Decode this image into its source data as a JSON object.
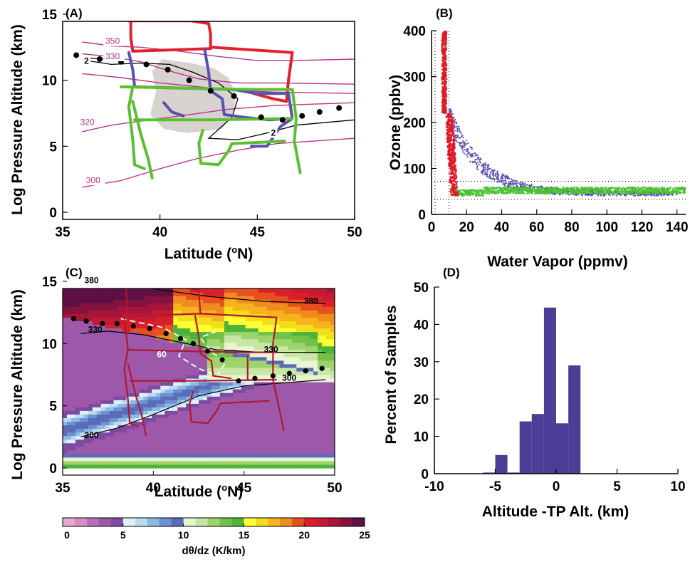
{
  "chart_data": [
    {
      "panel": "(A)",
      "type": "line",
      "xlabel": "Latitude (",
      "xlabel_sup": "o",
      "xlabel_end": "N)",
      "ylabel": "Log Pressure Altitude (km)",
      "xlim": [
        35,
        50
      ],
      "ylim": [
        0,
        15
      ],
      "xticks": [
        "35",
        "40",
        "45",
        "50"
      ],
      "yticks": [
        "0",
        "5",
        "10",
        "15"
      ],
      "colors": {
        "red": "#e4202c",
        "blue": "#5a50b0",
        "green": "#5cbf2f",
        "theta": "#b8348a",
        "shade": "#d9d3cf"
      },
      "theta_labels": [
        "350",
        "330",
        "320",
        "300"
      ],
      "pv_labels": [
        "2",
        "2"
      ],
      "tropopause_points": [
        [
          35.7,
          11.9
        ],
        [
          36.9,
          11.6
        ],
        [
          38.0,
          11.4
        ],
        [
          39.3,
          11.2
        ],
        [
          40.4,
          10.8
        ],
        [
          41.5,
          10.0
        ],
        [
          42.6,
          9.2
        ],
        [
          43.8,
          8.8
        ],
        [
          45.2,
          7.2
        ],
        [
          46.3,
          7.0
        ],
        [
          47.3,
          7.3
        ],
        [
          48.2,
          7.6
        ],
        [
          49.2,
          7.9
        ]
      ]
    },
    {
      "panel": "(B)",
      "type": "scatter",
      "xlabel": "Water Vapor (ppmv)",
      "ylabel": "Ozone (ppbv)",
      "xlim": [
        0,
        145
      ],
      "ylim": [
        0,
        400
      ],
      "xticks": [
        "0",
        "20",
        "40",
        "60",
        "80",
        "100",
        "120",
        "140"
      ],
      "yticks": [
        "0",
        "100",
        "200",
        "300",
        "400"
      ]
    },
    {
      "panel": "(C)",
      "type": "heatmap",
      "xlabel": "Latitude (",
      "xlabel_sup": "o",
      "xlabel_end": "N)",
      "ylabel": "Log Pressure Altitude (km)",
      "xlim": [
        35,
        50
      ],
      "ylim": [
        0,
        15
      ],
      "xticks": [
        "35",
        "40",
        "45",
        "50"
      ],
      "yticks": [
        "0",
        "5",
        "10",
        "15"
      ],
      "contour_labels": [
        "380",
        "380",
        "330",
        "330",
        "300",
        "300",
        "60"
      ],
      "colorbar": {
        "label": "dθ/dz (K/km)",
        "ticks": [
          "0",
          "5",
          "10",
          "15",
          "20",
          "25"
        ],
        "colors": [
          "#e7a8cf",
          "#d98cc3",
          "#b96db3",
          "#9d58aa",
          "#7d4aa1",
          "#dff0fa",
          "#b8dcf1",
          "#8fb9e0",
          "#6d92cf",
          "#5a6cb9",
          "#e9f4d3",
          "#c9e6a5",
          "#9fd36d",
          "#72c24a",
          "#4db33a",
          "#ffff33",
          "#f2df1a",
          "#f7b21e",
          "#f08c1e",
          "#e6501e",
          "#d9202a",
          "#c51a32",
          "#a6153a",
          "#84133f",
          "#5e0f44"
        ]
      }
    },
    {
      "panel": "(D)",
      "type": "bar",
      "xlabel": "Altitude -TP Alt. (km)",
      "ylabel": "Percent of Samples",
      "xlim": [
        -10,
        10
      ],
      "ylim": [
        0,
        50
      ],
      "xticks": [
        "-10",
        "-5",
        "0",
        "5",
        "10"
      ],
      "yticks": [
        "0",
        "10",
        "20",
        "30",
        "40",
        "50"
      ],
      "bin_width": 1,
      "bin_starts": [
        -6,
        -5,
        -4,
        -3,
        -2,
        -1,
        0,
        1
      ],
      "values": [
        0.3,
        5,
        0.3,
        14,
        16,
        44.5,
        13.5,
        29
      ],
      "color": "#4a3e96"
    }
  ]
}
